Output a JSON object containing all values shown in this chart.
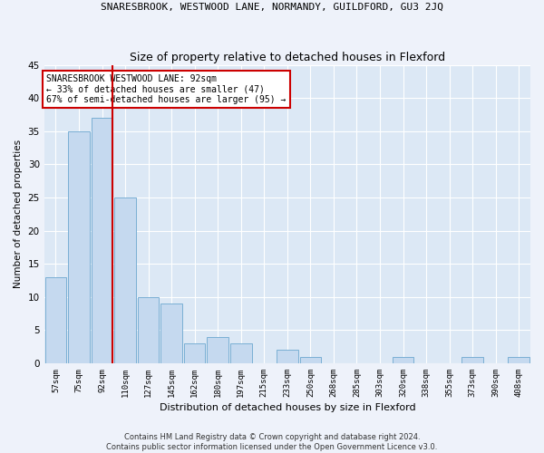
{
  "title": "SNARESBROOK, WESTWOOD LANE, NORMANDY, GUILDFORD, GU3 2JQ",
  "subtitle": "Size of property relative to detached houses in Flexford",
  "xlabel": "Distribution of detached houses by size in Flexford",
  "ylabel": "Number of detached properties",
  "categories": [
    "57sqm",
    "75sqm",
    "92sqm",
    "110sqm",
    "127sqm",
    "145sqm",
    "162sqm",
    "180sqm",
    "197sqm",
    "215sqm",
    "233sqm",
    "250sqm",
    "268sqm",
    "285sqm",
    "303sqm",
    "320sqm",
    "338sqm",
    "355sqm",
    "373sqm",
    "390sqm",
    "408sqm"
  ],
  "values": [
    13,
    35,
    37,
    25,
    10,
    9,
    3,
    4,
    3,
    0,
    2,
    1,
    0,
    0,
    0,
    1,
    0,
    0,
    1,
    0,
    1
  ],
  "bar_color": "#c5d9ef",
  "bar_edge_color": "#7aafd4",
  "highlight_index": 2,
  "highlight_line_color": "#cc0000",
  "ylim": [
    0,
    45
  ],
  "yticks": [
    0,
    5,
    10,
    15,
    20,
    25,
    30,
    35,
    40,
    45
  ],
  "annotation_text": "SNARESBROOK WESTWOOD LANE: 92sqm\n← 33% of detached houses are smaller (47)\n67% of semi-detached houses are larger (95) →",
  "annotation_box_color": "#ffffff",
  "annotation_box_edge_color": "#cc0000",
  "footer_text": "Contains HM Land Registry data © Crown copyright and database right 2024.\nContains public sector information licensed under the Open Government Licence v3.0.",
  "background_color": "#eef2fa",
  "plot_bg_color": "#dce8f5",
  "grid_color": "#ffffff"
}
